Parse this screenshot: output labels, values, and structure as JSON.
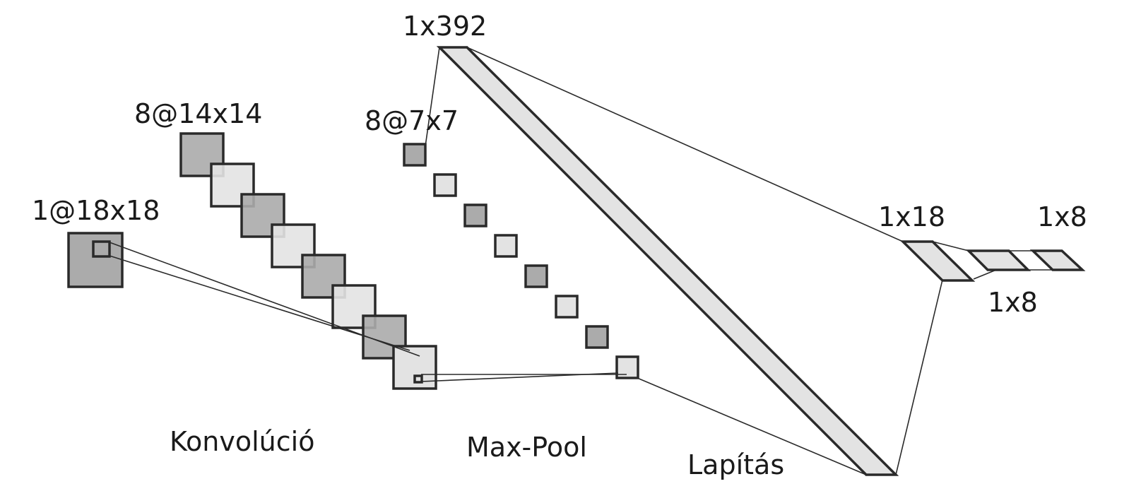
{
  "labels": {
    "input": "1@18x18",
    "conv": "8@14x14",
    "pool": "8@7x7",
    "flat": "1x392",
    "dense1": "1x18",
    "dense2_top": "1x8",
    "dense2_bottom": "1x8"
  },
  "stages": {
    "convolution": "Konvolúció",
    "maxpool": "Max-Pool",
    "flatten": "Lapítás"
  },
  "colors": {
    "dark": "#ababab",
    "light": "#e3e3e3",
    "stroke": "#2a2a2a"
  },
  "layers": {
    "conv_maps": 8,
    "pool_maps": 8
  }
}
